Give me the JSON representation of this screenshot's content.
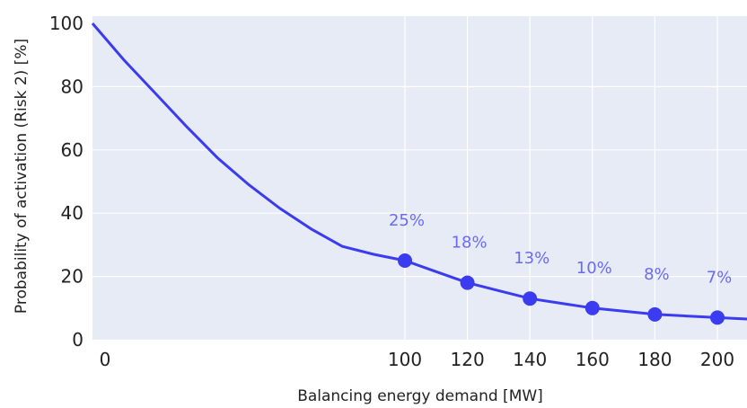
{
  "chart_data": {
    "type": "line",
    "title": "",
    "xlabel": "Balancing energy demand [MW]",
    "ylabel": "Probability of activation (Risk 2) [%]",
    "xlim": [
      0,
      210
    ],
    "ylim": [
      0,
      100
    ],
    "x_ticks": [
      "0",
      "100",
      "120",
      "140",
      "160",
      "180",
      "200"
    ],
    "x_tick_values": [
      0,
      100,
      120,
      140,
      160,
      180,
      200
    ],
    "y_ticks": [
      "0",
      "20",
      "40",
      "60",
      "80",
      "100"
    ],
    "y_tick_values": [
      0,
      20,
      40,
      60,
      80,
      100
    ],
    "grid": true,
    "legend": "none",
    "colors": {
      "line": "#3b3bf0",
      "label": "#6b6bf0",
      "plot_bg": "#e6ebf6",
      "grid": "#ffffff"
    },
    "series": [
      {
        "x": [
          0,
          10,
          20,
          30,
          40,
          50,
          60,
          70,
          80,
          90,
          100,
          110,
          120,
          130,
          140,
          150,
          160,
          170,
          180,
          190,
          200,
          210
        ],
        "values": [
          100,
          88.5,
          78,
          67.5,
          57.5,
          49,
          41.5,
          35,
          29.5,
          27,
          25,
          21.5,
          18,
          15.5,
          13,
          11.5,
          10,
          9,
          8,
          7.5,
          7,
          6.5
        ]
      }
    ],
    "markers": {
      "x": [
        100,
        120,
        140,
        160,
        180,
        200
      ],
      "values": [
        25,
        18,
        13,
        10,
        8,
        7
      ],
      "labels": [
        "25%",
        "18%",
        "13%",
        "10%",
        "8%",
        "7%"
      ]
    }
  }
}
